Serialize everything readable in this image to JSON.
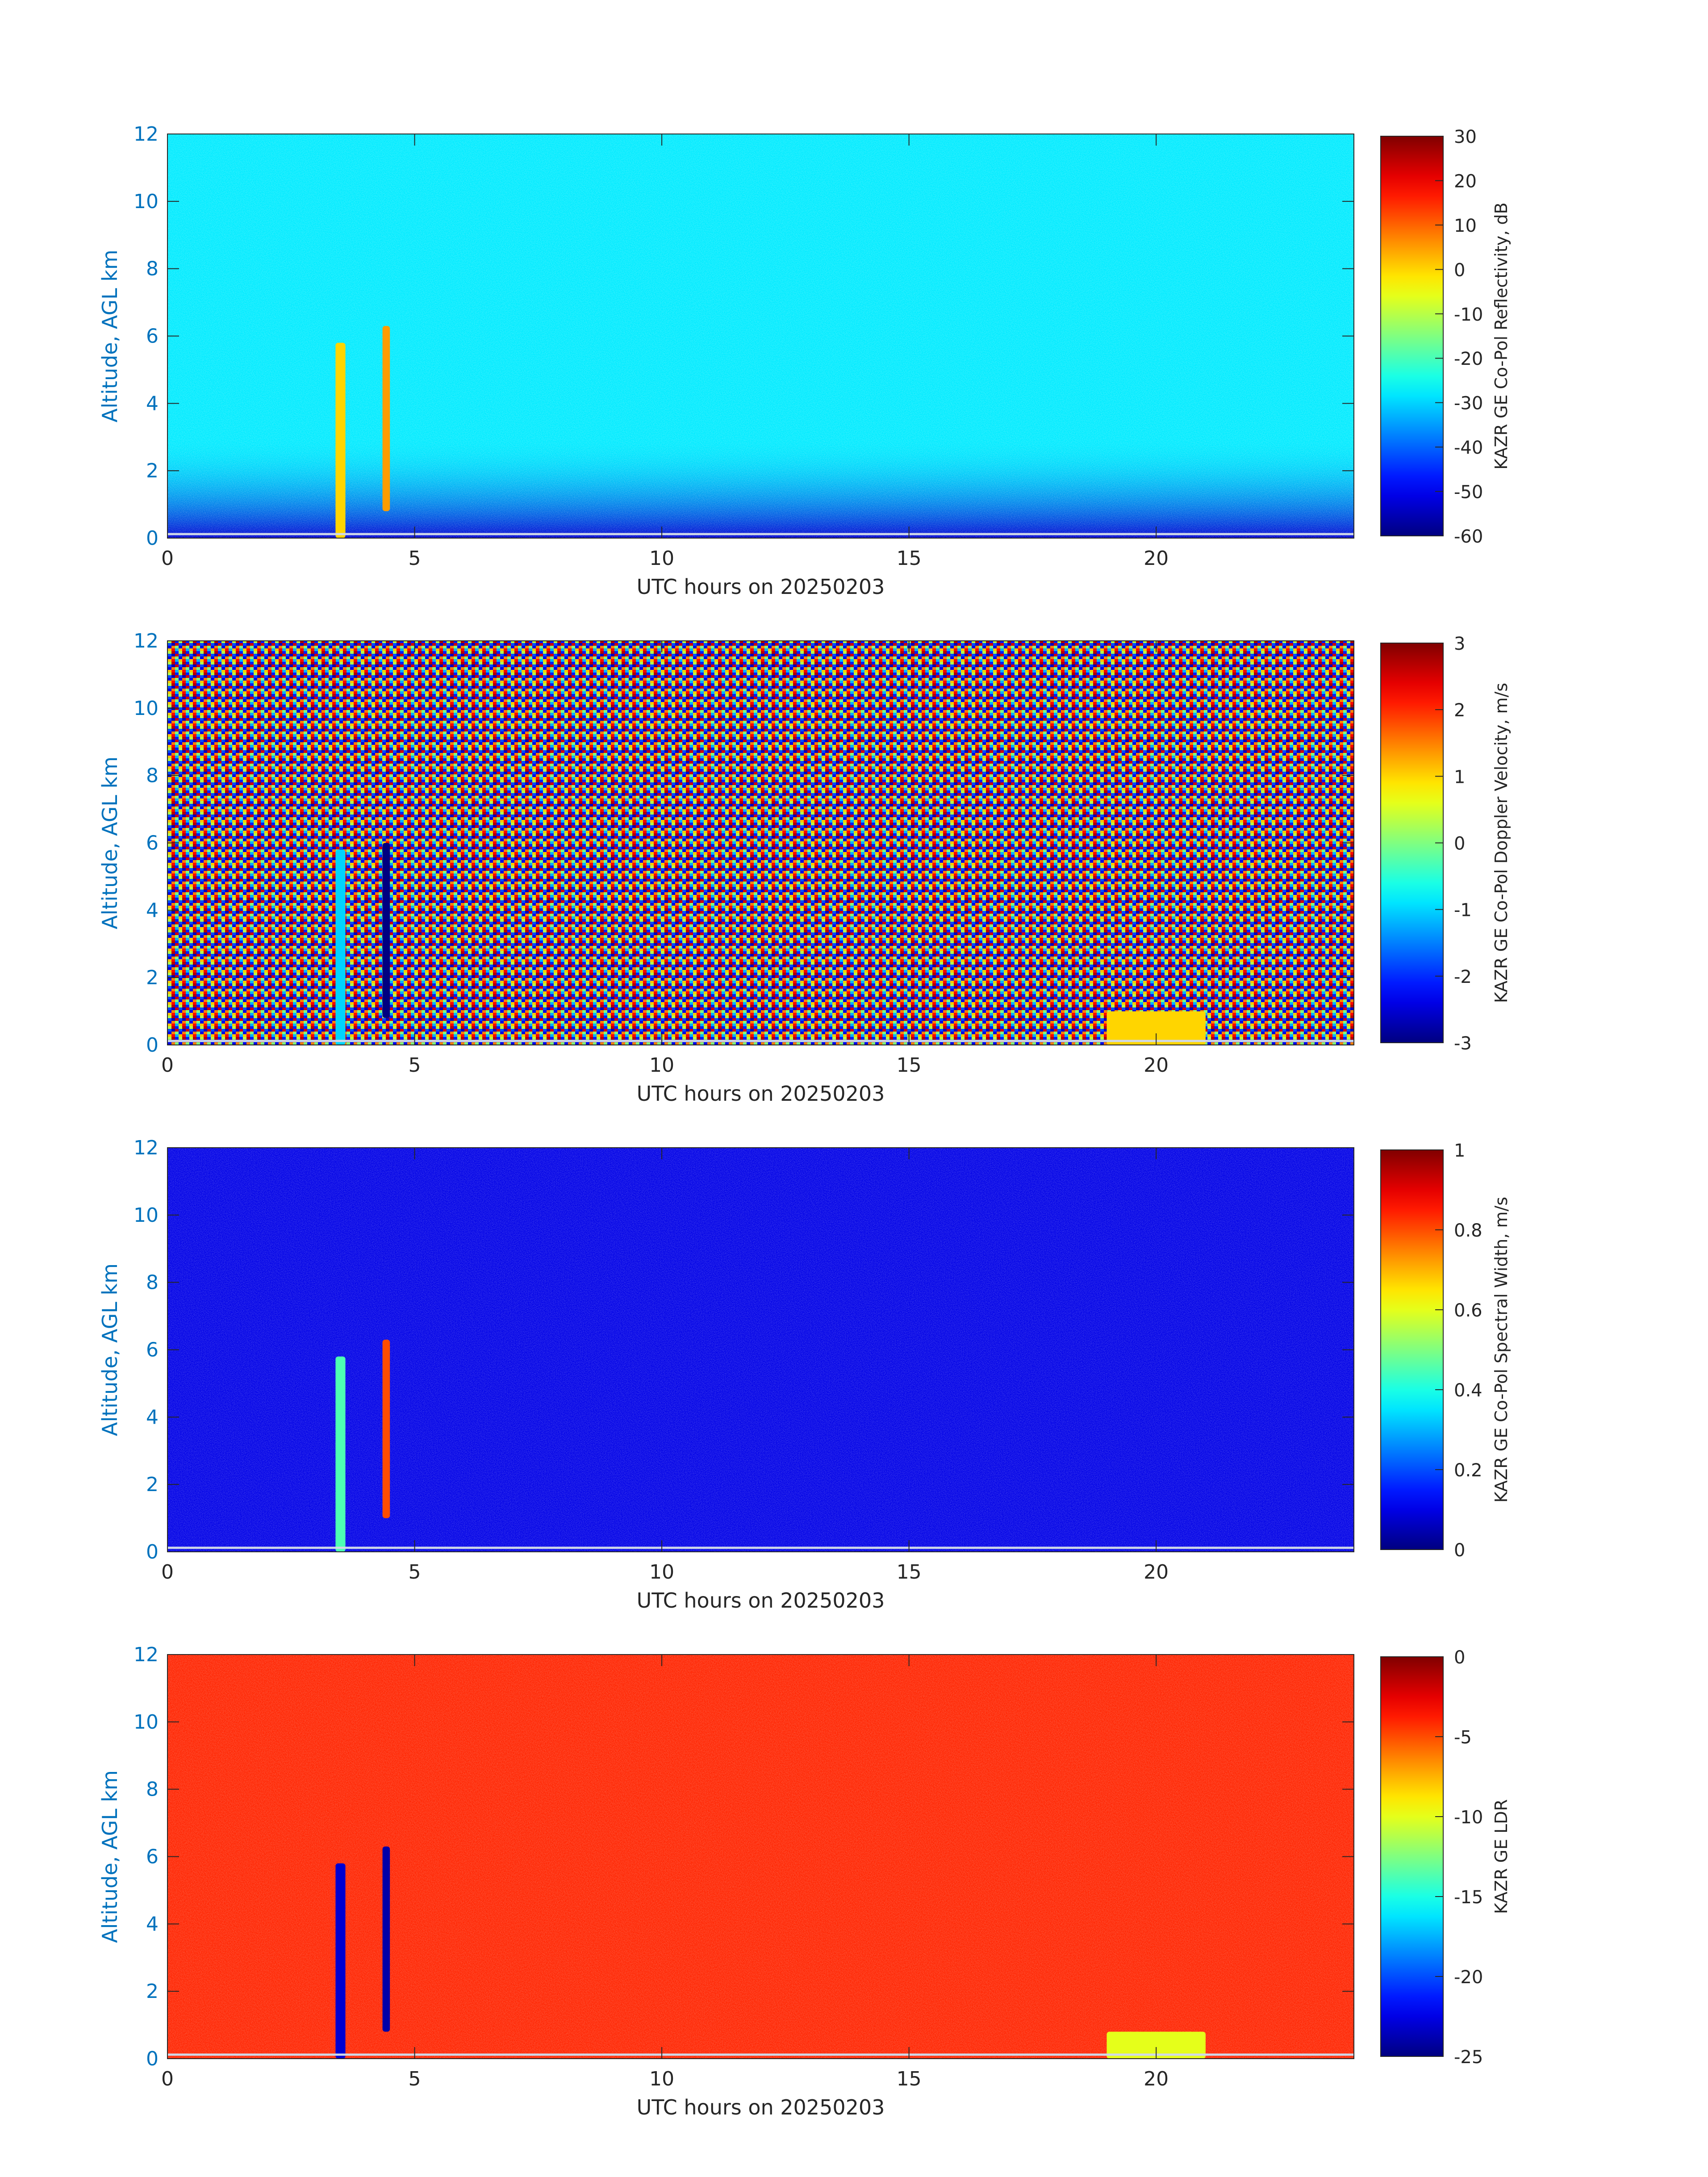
{
  "chart_data": [
    {
      "type": "heatmap",
      "xlabel": "UTC hours on 20250203",
      "ylabel": "Altitude, AGL km",
      "xlim": [
        0,
        24
      ],
      "ylim": [
        0,
        12
      ],
      "xticks": [
        "0",
        "5",
        "10",
        "15",
        "20"
      ],
      "yticks": [
        "0",
        "2",
        "4",
        "6",
        "8",
        "10",
        "12"
      ],
      "colorbar": {
        "label": "KAZR GE Co-Pol Reflectivity, dB",
        "range": [
          -60,
          30
        ],
        "ticks": [
          "30",
          "20",
          "10",
          "0",
          "-10",
          "-20",
          "-30",
          "-40",
          "-50",
          "-60"
        ],
        "colormap": "jet"
      },
      "background_value": -28,
      "features": [
        {
          "x": [
            3.4,
            3.6
          ],
          "y": [
            0,
            5.8
          ],
          "value": 0
        },
        {
          "x": [
            4.35,
            4.5
          ],
          "y": [
            0.8,
            6.3
          ],
          "value": 5
        }
      ]
    },
    {
      "type": "heatmap",
      "xlabel": "UTC hours on 20250203",
      "ylabel": "Altitude, AGL km",
      "xlim": [
        0,
        24
      ],
      "ylim": [
        0,
        12
      ],
      "xticks": [
        "0",
        "5",
        "10",
        "15",
        "20"
      ],
      "yticks": [
        "0",
        "2",
        "4",
        "6",
        "8",
        "10",
        "12"
      ],
      "colorbar": {
        "label": "KAZR GE Co-Pol Doppler Velocity, m/s",
        "range": [
          -3,
          3
        ],
        "ticks": [
          "3",
          "2",
          "1",
          "0",
          "-1",
          "-2",
          "-3"
        ],
        "colormap": "jet"
      },
      "background_value": "noise",
      "features": [
        {
          "x": [
            3.4,
            3.6
          ],
          "y": [
            0,
            5.8
          ],
          "value": -1
        },
        {
          "x": [
            4.35,
            4.5
          ],
          "y": [
            0.8,
            6.0
          ],
          "value": -3
        },
        {
          "x": [
            19,
            21
          ],
          "y": [
            0,
            1
          ],
          "value": 1
        }
      ]
    },
    {
      "type": "heatmap",
      "xlabel": "UTC hours on 20250203",
      "ylabel": "Altitude, AGL km",
      "xlim": [
        0,
        24
      ],
      "ylim": [
        0,
        12
      ],
      "xticks": [
        "0",
        "5",
        "10",
        "15",
        "20"
      ],
      "yticks": [
        "0",
        "2",
        "4",
        "6",
        "8",
        "10",
        "12"
      ],
      "colorbar": {
        "label": "KAZR GE Co-Pol Spectral Width, m/s",
        "range": [
          0,
          1
        ],
        "ticks": [
          "1",
          "0.8",
          "0.6",
          "0.4",
          "0.2",
          "0"
        ],
        "colormap": "jet"
      },
      "background_value": 0.1,
      "features": [
        {
          "x": [
            3.4,
            3.6
          ],
          "y": [
            0,
            5.8
          ],
          "value": 0.45
        },
        {
          "x": [
            4.35,
            4.5
          ],
          "y": [
            1.0,
            6.3
          ],
          "value": 0.8
        }
      ]
    },
    {
      "type": "heatmap",
      "xlabel": "UTC hours on 20250203",
      "ylabel": "Altitude, AGL km",
      "xlim": [
        0,
        24
      ],
      "ylim": [
        0,
        12
      ],
      "xticks": [
        "0",
        "5",
        "10",
        "15",
        "20"
      ],
      "yticks": [
        "0",
        "2",
        "4",
        "6",
        "8",
        "10",
        "12"
      ],
      "colorbar": {
        "label": "KAZR GE LDR",
        "range": [
          -25,
          0
        ],
        "ticks": [
          "0",
          "-5",
          "-10",
          "-15",
          "-20",
          "-25"
        ],
        "colormap": "jet"
      },
      "background_value": -4,
      "features": [
        {
          "x": [
            3.4,
            3.6
          ],
          "y": [
            0,
            5.8
          ],
          "value": -23
        },
        {
          "x": [
            4.35,
            4.5
          ],
          "y": [
            0.8,
            6.3
          ],
          "value": -24
        },
        {
          "x": [
            19,
            21
          ],
          "y": [
            0,
            0.8
          ],
          "value": -10
        }
      ]
    }
  ]
}
